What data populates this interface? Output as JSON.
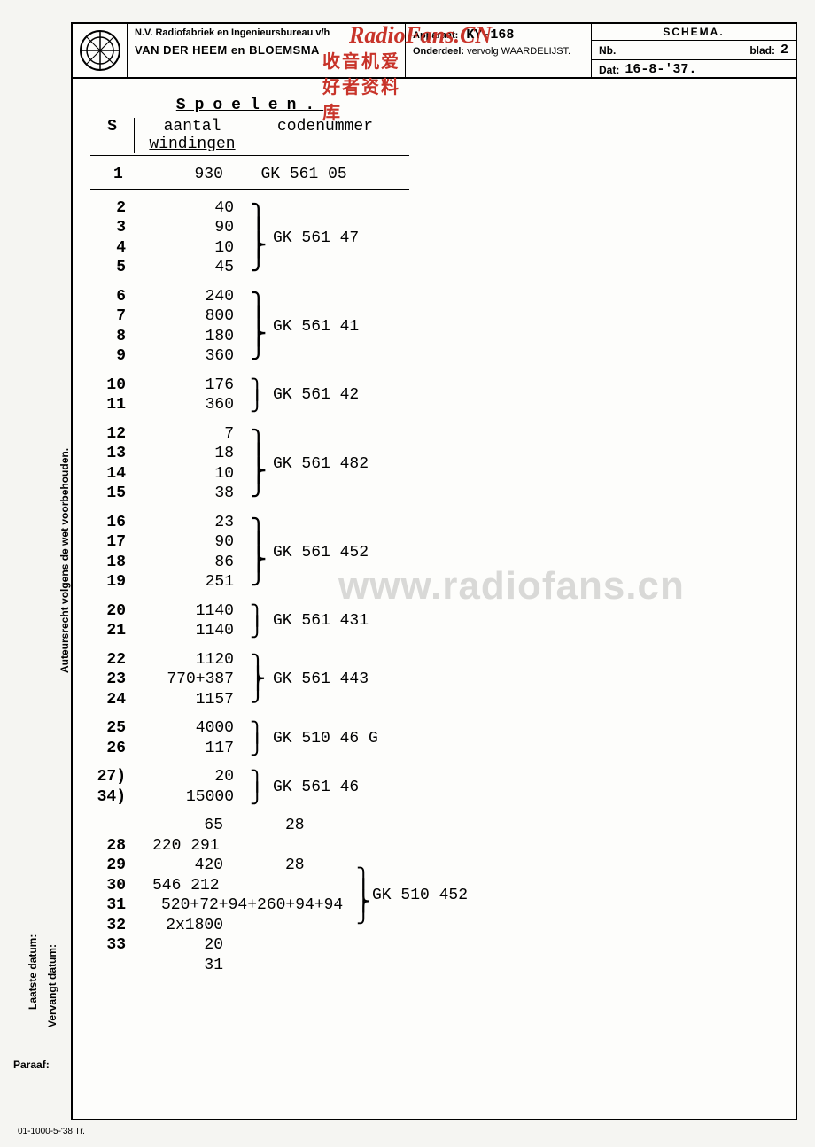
{
  "header": {
    "company_line1": "N.V. Radiofabriek en Ingenieursbureau v/h",
    "company_line2": "VAN DER HEEM en BLOEMSMA",
    "apparaat_label": "Apparaat:",
    "apparaat_value": "KY-168",
    "onderdeel_label": "Onderdeel:",
    "onderdeel_value": "vervolg WAARDELIJST.",
    "schema_title": "SCHEMA.",
    "nb_label": "Nb.",
    "blad_label": "blad:",
    "blad_value": "2",
    "dat_label": "Dat:",
    "dat_value": "16-8-'37."
  },
  "watermarks": {
    "top1": "RadioFans.CN",
    "top2": "收音机爱好者资料库",
    "mid": "www.radiofans.cn"
  },
  "table": {
    "title": "Spoelen.",
    "head_s": "S",
    "head_w1": "aantal",
    "head_w2": "windingen",
    "head_c": "codenummer"
  },
  "groups": [
    {
      "s": [
        "1"
      ],
      "w": [
        "930"
      ],
      "code": "GK 561 05",
      "first": true
    },
    {
      "s": [
        "2",
        "3",
        "4",
        "5"
      ],
      "w": [
        "40",
        "90",
        "10",
        "45"
      ],
      "code": "GK 561 47"
    },
    {
      "s": [
        "6",
        "7",
        "8",
        "9"
      ],
      "w": [
        "240",
        "800",
        "180",
        "360"
      ],
      "code": "GK 561 41"
    },
    {
      "s": [
        "10",
        "11"
      ],
      "w": [
        "176",
        "360"
      ],
      "code": "GK 561 42"
    },
    {
      "s": [
        "12",
        "13",
        "14",
        "15"
      ],
      "w": [
        "7",
        "18",
        "10",
        "38"
      ],
      "code": "GK 561 482"
    },
    {
      "s": [
        "16",
        "17",
        "18",
        "19"
      ],
      "w": [
        "23",
        "90",
        "86",
        "251"
      ],
      "code": "GK 561 452"
    },
    {
      "s": [
        "20",
        "21"
      ],
      "w": [
        "1140",
        "1140"
      ],
      "code": "GK 561 431"
    },
    {
      "s": [
        "22",
        "23",
        "24"
      ],
      "w": [
        "1120",
        "770+387",
        "1157"
      ],
      "code": "GK 561 443"
    },
    {
      "s": [
        "25",
        "26"
      ],
      "w": [
        "4000",
        "117"
      ],
      "code": "GK 510 46 G"
    },
    {
      "s": [
        "27)",
        "34)"
      ],
      "w": [
        "20",
        "15000"
      ],
      "code": "GK 561 46"
    }
  ],
  "lastgroup": {
    "s": [
      "28",
      "29",
      "30",
      "31",
      "32",
      "33"
    ],
    "w": [
      "65",
      "420",
      "520+72+94+260+94+94",
      "2x1800",
      "20",
      "31"
    ],
    "codes": [
      "28 220 291",
      "28 546 212",
      "",
      "GK 510 452",
      "",
      ""
    ]
  },
  "sidebar": {
    "copyright": "Auteursrecht volgens de wet voorbehouden.",
    "laatste": "Laatste datum:",
    "vervangt": "Vervangt datum:"
  },
  "paraaf": "Paraaf:",
  "footcode": "01-1000-5-'38 Tr."
}
